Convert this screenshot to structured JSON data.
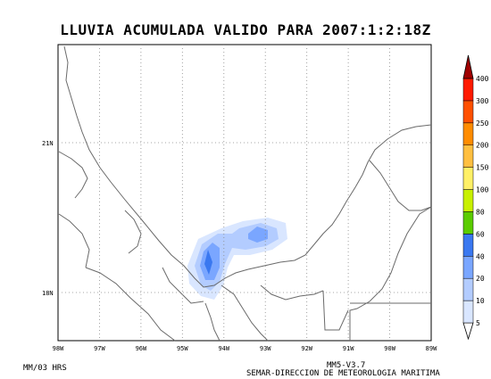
{
  "title": "LLUVIA ACUMULADA VALIDO PARA 2007:1:2:18Z",
  "map": {
    "lat_labels": [
      "21N",
      "18N"
    ],
    "lon_labels": [
      "98W",
      "97W",
      "96W",
      "95W",
      "94W",
      "93W",
      "92W",
      "91W",
      "90W",
      "89W"
    ],
    "grid": true,
    "grid_style": "dotted",
    "coast_color": "#6a6a6a",
    "rain_cells": [
      {
        "name": "rain-cell-outer",
        "level": 5,
        "color": "#d9e6ff"
      },
      {
        "name": "rain-cell-mid",
        "level": 10,
        "color": "#b3ccff"
      },
      {
        "name": "rain-cell-inner",
        "level": 20,
        "color": "#7aa6ff"
      },
      {
        "name": "rain-cell-core",
        "level": 40,
        "color": "#3a78f0"
      }
    ]
  },
  "colorbar": {
    "levels": [
      "5",
      "10",
      "20",
      "40",
      "60",
      "80",
      "100",
      "150",
      "200",
      "250",
      "300",
      "400"
    ],
    "colors": [
      "#d9e6ff",
      "#b3ccff",
      "#7aa6ff",
      "#3a78f0",
      "#5bcc00",
      "#c8f000",
      "#fff066",
      "#ffbf40",
      "#ff8c00",
      "#ff5000",
      "#ff1a00",
      "#e60000",
      "#a00000"
    ]
  },
  "footer": {
    "left": "MM/03 HRS",
    "model": "MM5-V3.7",
    "agency": "SEMAR-DIRECCION DE METEOROLOGIA MARITIMA"
  }
}
